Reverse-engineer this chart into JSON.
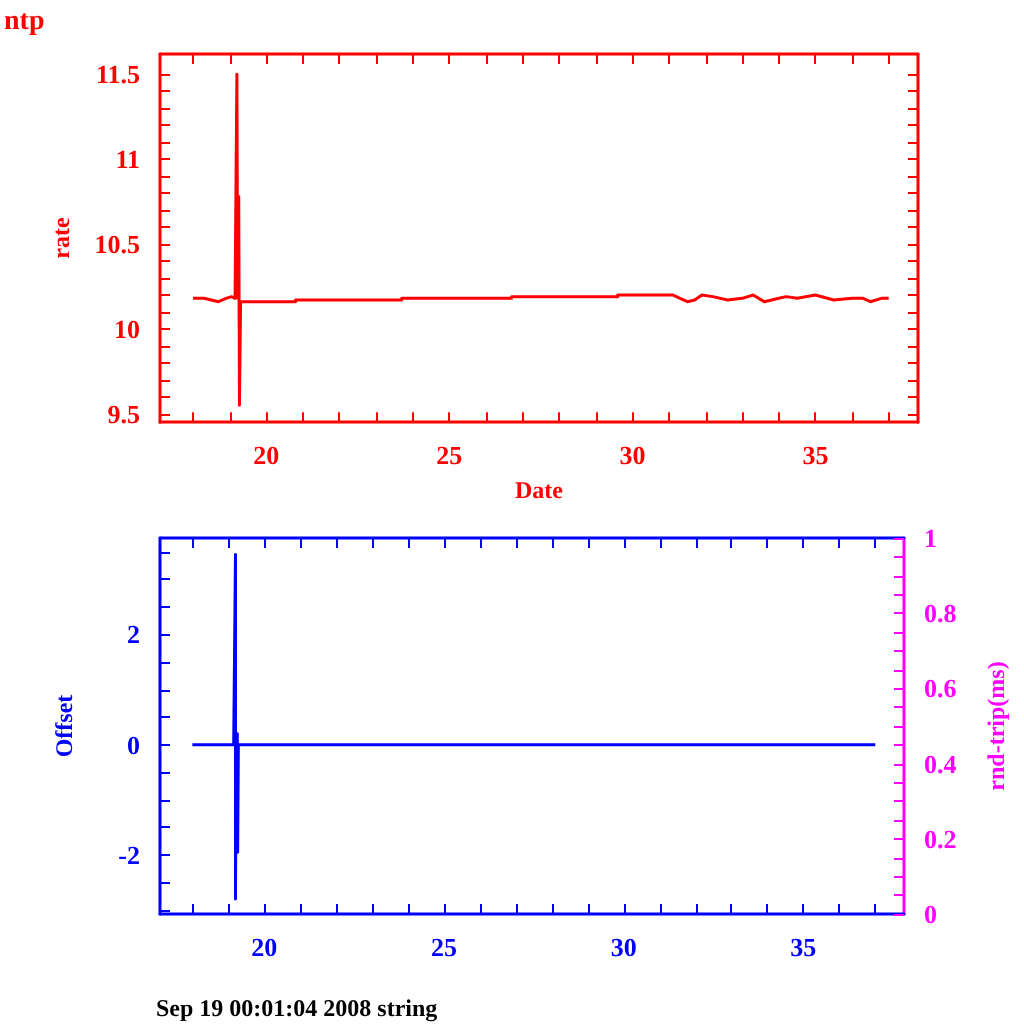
{
  "chart_data": [
    {
      "type": "line",
      "title": "ntp",
      "xlabel": "Date",
      "ylabel": "rate",
      "xlim": [
        17.1,
        37.8
      ],
      "ylim": [
        9.45,
        11.62
      ],
      "xticks": [
        {
          "value": 18,
          "label": null
        },
        {
          "value": 19,
          "label": null
        },
        20,
        {
          "value": 21,
          "label": null
        },
        {
          "value": 22,
          "label": null
        },
        {
          "value": 23,
          "label": null
        },
        {
          "value": 24,
          "label": null
        },
        25,
        {
          "value": 26,
          "label": null
        },
        {
          "value": 27,
          "label": null
        },
        {
          "value": 28,
          "label": null
        },
        {
          "value": 29,
          "label": null
        },
        30,
        {
          "value": 31,
          "label": null
        },
        {
          "value": 32,
          "label": null
        },
        {
          "value": 33,
          "label": null
        },
        {
          "value": 34,
          "label": null
        },
        35,
        {
          "value": 36,
          "label": null
        },
        {
          "value": 37,
          "label": null
        }
      ],
      "yticks": [
        9.5,
        {
          "value": 9.6,
          "label": null
        },
        {
          "value": 9.7,
          "label": null
        },
        {
          "value": 9.8,
          "label": null
        },
        {
          "value": 9.9,
          "label": null
        },
        10,
        {
          "value": 10.1,
          "label": null
        },
        {
          "value": 10.2,
          "label": null
        },
        {
          "value": 10.3,
          "label": null
        },
        {
          "value": 10.4,
          "label": null
        },
        10.5,
        {
          "value": 10.6,
          "label": null
        },
        {
          "value": 10.7,
          "label": null
        },
        {
          "value": 10.8,
          "label": null
        },
        {
          "value": 10.9,
          "label": null
        },
        11,
        {
          "value": 11.1,
          "label": null
        },
        {
          "value": 11.2,
          "label": null
        },
        {
          "value": 11.3,
          "label": null
        },
        {
          "value": 11.4,
          "label": null
        },
        11.5
      ],
      "grid": false,
      "marker": "none",
      "line_style": "solid",
      "series": [
        {
          "color": "#ff0000",
          "x": [
            18.0,
            18.3,
            18.5,
            18.7,
            18.9,
            19.05,
            19.15,
            19.2,
            19.22,
            19.25,
            19.27,
            19.3,
            20.8,
            20.8,
            23.7,
            23.7,
            26.7,
            26.7,
            29.6,
            29.6,
            31.1,
            31.3,
            31.5,
            31.7,
            31.9,
            32.2,
            32.6,
            33.0,
            33.3,
            33.6,
            34.0,
            34.2,
            34.5,
            35.0,
            35.5,
            36.0,
            36.3,
            36.5,
            36.8,
            37.0
          ],
          "values": [
            10.18,
            10.18,
            10.17,
            10.16,
            10.18,
            10.19,
            10.18,
            11.5,
            10.18,
            10.78,
            9.55,
            10.16,
            10.16,
            10.17,
            10.17,
            10.18,
            10.18,
            10.19,
            10.19,
            10.2,
            10.2,
            10.18,
            10.16,
            10.17,
            10.2,
            10.19,
            10.17,
            10.18,
            10.2,
            10.16,
            10.18,
            10.19,
            10.18,
            10.2,
            10.17,
            10.18,
            10.18,
            10.16,
            10.18,
            10.18
          ]
        }
      ]
    },
    {
      "type": "line",
      "ylabel": "Offset",
      "y2label": "rnd-trip(ms)",
      "xlim": [
        17.1,
        37.8
      ],
      "ylim": [
        -3.07,
        3.75
      ],
      "y2lim": [
        0,
        1
      ],
      "xticks": [
        {
          "value": 18,
          "label": null
        },
        {
          "value": 19,
          "label": null
        },
        20,
        {
          "value": 21,
          "label": null
        },
        {
          "value": 22,
          "label": null
        },
        {
          "value": 23,
          "label": null
        },
        {
          "value": 24,
          "label": null
        },
        25,
        {
          "value": 26,
          "label": null
        },
        {
          "value": 27,
          "label": null
        },
        {
          "value": 28,
          "label": null
        },
        {
          "value": 29,
          "label": null
        },
        30,
        {
          "value": 31,
          "label": null
        },
        {
          "value": 32,
          "label": null
        },
        {
          "value": 33,
          "label": null
        },
        {
          "value": 34,
          "label": null
        },
        35,
        {
          "value": 36,
          "label": null
        },
        {
          "value": 37,
          "label": null
        }
      ],
      "yticks": [
        {
          "value": -3,
          "label": null
        },
        {
          "value": -2.5,
          "label": null
        },
        -2,
        {
          "value": -1.5,
          "label": null
        },
        {
          "value": -1,
          "label": null
        },
        {
          "value": -0.5,
          "label": null
        },
        0,
        {
          "value": 0.5,
          "label": null
        },
        {
          "value": 1,
          "label": null
        },
        {
          "value": 1.5,
          "label": null
        },
        2,
        {
          "value": 2.5,
          "label": null
        },
        {
          "value": 3,
          "label": null
        },
        {
          "value": 3.5,
          "label": null
        }
      ],
      "y2ticks": [
        0,
        {
          "value": 0.05,
          "label": null
        },
        {
          "value": 0.1,
          "label": null
        },
        {
          "value": 0.15,
          "label": null
        },
        0.2,
        {
          "value": 0.25,
          "label": null
        },
        {
          "value": 0.3,
          "label": null
        },
        {
          "value": 0.35,
          "label": null
        },
        0.4,
        {
          "value": 0.45,
          "label": null
        },
        {
          "value": 0.5,
          "label": null
        },
        {
          "value": 0.55,
          "label": null
        },
        0.6,
        {
          "value": 0.65,
          "label": null
        },
        {
          "value": 0.7,
          "label": null
        },
        {
          "value": 0.75,
          "label": null
        },
        0.8,
        {
          "value": 0.85,
          "label": null
        },
        {
          "value": 0.9,
          "label": null
        },
        {
          "value": 0.95,
          "label": null
        },
        1
      ],
      "grid": false,
      "marker": "none",
      "line_style": "solid",
      "annotations": [
        "Sep 19 00:01:04 2008 string"
      ],
      "series": [
        {
          "color": "#0000ff",
          "x": [
            18.0,
            19.15,
            19.2,
            19.2,
            19.22,
            19.25,
            19.26,
            19.28,
            37.0
          ],
          "values": [
            0,
            0,
            3.45,
            -2.8,
            0,
            0.2,
            -1.95,
            0,
            0
          ]
        }
      ]
    }
  ]
}
